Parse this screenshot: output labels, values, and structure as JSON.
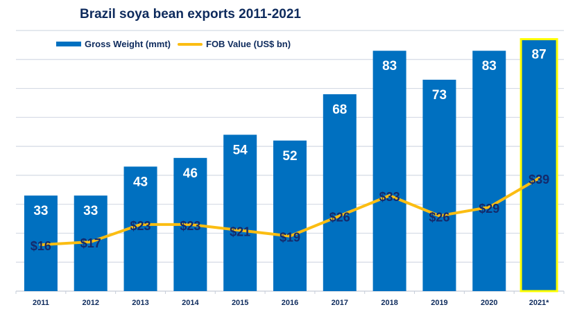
{
  "chart_data": {
    "type": "bar",
    "title": "Brazil soya bean exports 2011-2021",
    "xlabel": "",
    "ylabel": "",
    "ylim": [
      0,
      90
    ],
    "grid": true,
    "legend_position": "top-left",
    "categories": [
      "2011",
      "2012",
      "2013",
      "2014",
      "2015",
      "2016",
      "2017",
      "2018",
      "2019",
      "2020",
      "2021*"
    ],
    "series": [
      {
        "name": "Gross Weight (mmt)",
        "type": "bar",
        "color": "#0070c0",
        "values": [
          33,
          33,
          43,
          46,
          54,
          52,
          68,
          83,
          73,
          83,
          87
        ],
        "labels": [
          "33",
          "33",
          "43",
          "46",
          "54",
          "52",
          "68",
          "83",
          "73",
          "83",
          "87"
        ],
        "highlight_index": 10,
        "highlight_color": "#ffff00"
      },
      {
        "name": "FOB Value (US$ bn)",
        "type": "line",
        "color": "#fbbd12",
        "values": [
          16,
          17,
          23,
          23,
          21,
          19,
          26,
          33,
          26,
          29,
          39
        ],
        "labels": [
          "$16",
          "$17",
          "$23",
          "$23",
          "$21",
          "$19",
          "$26",
          "$33",
          "$26",
          "$29",
          "$39"
        ]
      }
    ]
  }
}
